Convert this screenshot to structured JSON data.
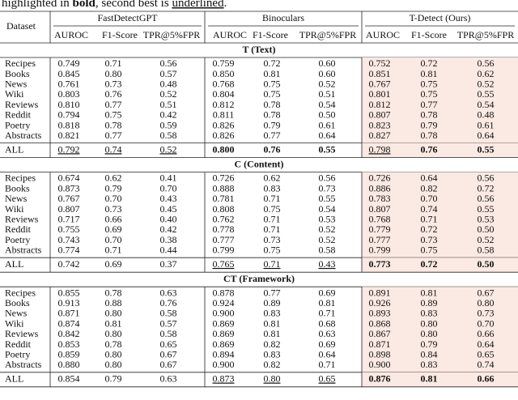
{
  "caption": {
    "runs": [
      {
        "text": "highlighted in "
      },
      {
        "text": "bold",
        "bold": true
      },
      {
        "text": ", second best is "
      },
      {
        "text": "underlined",
        "underline": true
      },
      {
        "text": "."
      }
    ]
  },
  "table": {
    "dataset_header": "Dataset",
    "highlight_group": 2,
    "groups": [
      {
        "name": "FastDetectGPT",
        "columns": [
          "AUROC",
          "F1-Score",
          "TPR@5%FPR"
        ]
      },
      {
        "name": "Binoculars",
        "columns": [
          "AUROC",
          "F1-Score",
          "TPR@5%FPR"
        ]
      },
      {
        "name": "T-Detect (Ours)",
        "columns": [
          "AUROC",
          "F1-Score",
          "TPR@5%FPR"
        ]
      }
    ],
    "sections": [
      {
        "title": "T (Text)",
        "rows": [
          [
            "Recipes",
            "0.749",
            "0.71",
            "0.56",
            "0.759",
            "0.72",
            "0.60",
            "0.752",
            "0.72",
            "0.56"
          ],
          [
            "Books",
            "0.845",
            "0.80",
            "0.57",
            "0.850",
            "0.81",
            "0.60",
            "0.851",
            "0.81",
            "0.62"
          ],
          [
            "News",
            "0.761",
            "0.73",
            "0.48",
            "0.768",
            "0.75",
            "0.52",
            "0.767",
            "0.75",
            "0.52"
          ],
          [
            "Wiki",
            "0.803",
            "0.76",
            "0.52",
            "0.804",
            "0.75",
            "0.51",
            "0.801",
            "0.75",
            "0.55"
          ],
          [
            "Reviews",
            "0.810",
            "0.77",
            "0.51",
            "0.812",
            "0.78",
            "0.54",
            "0.812",
            "0.77",
            "0.54"
          ],
          [
            "Reddit",
            "0.794",
            "0.75",
            "0.42",
            "0.811",
            "0.78",
            "0.50",
            "0.807",
            "0.78",
            "0.48"
          ],
          [
            "Poetry",
            "0.818",
            "0.78",
            "0.59",
            "0.826",
            "0.79",
            "0.61",
            "0.823",
            "0.79",
            "0.61"
          ],
          [
            "Abstracts",
            "0.821",
            "0.77",
            "0.58",
            "0.826",
            "0.77",
            "0.64",
            "0.827",
            "0.78",
            "0.64"
          ]
        ],
        "all": {
          "cells": [
            "ALL",
            "0.792",
            "0.74",
            "0.52",
            "0.800",
            "0.76",
            "0.55",
            "0.798",
            "0.76",
            "0.55"
          ],
          "bold": [
            4,
            5,
            6,
            8,
            9
          ],
          "underline": [
            1,
            2,
            3,
            7
          ]
        }
      },
      {
        "title": "C (Content)",
        "rows": [
          [
            "Recipes",
            "0.674",
            "0.62",
            "0.41",
            "0.726",
            "0.62",
            "0.56",
            "0.726",
            "0.64",
            "0.56"
          ],
          [
            "Books",
            "0.873",
            "0.79",
            "0.70",
            "0.888",
            "0.83",
            "0.73",
            "0.886",
            "0.82",
            "0.72"
          ],
          [
            "News",
            "0.767",
            "0.70",
            "0.43",
            "0.781",
            "0.71",
            "0.55",
            "0.783",
            "0.70",
            "0.56"
          ],
          [
            "Wiki",
            "0.807",
            "0.73",
            "0.45",
            "0.808",
            "0.75",
            "0.54",
            "0.807",
            "0.74",
            "0.55"
          ],
          [
            "Reviews",
            "0.717",
            "0.66",
            "0.40",
            "0.762",
            "0.71",
            "0.53",
            "0.768",
            "0.71",
            "0.53"
          ],
          [
            "Reddit",
            "0.755",
            "0.69",
            "0.42",
            "0.778",
            "0.71",
            "0.52",
            "0.779",
            "0.72",
            "0.50"
          ],
          [
            "Poetry",
            "0.743",
            "0.70",
            "0.38",
            "0.777",
            "0.73",
            "0.52",
            "0.777",
            "0.73",
            "0.52"
          ],
          [
            "Abstracts",
            "0.774",
            "0.71",
            "0.44",
            "0.799",
            "0.75",
            "0.58",
            "0.799",
            "0.75",
            "0.58"
          ]
        ],
        "all": {
          "cells": [
            "ALL",
            "0.742",
            "0.69",
            "0.37",
            "0.765",
            "0.71",
            "0.43",
            "0.773",
            "0.72",
            "0.50"
          ],
          "bold": [
            7,
            8,
            9
          ],
          "underline": [
            4,
            5,
            6
          ]
        }
      },
      {
        "title": "CT (Framework)",
        "rows": [
          [
            "Recipes",
            "0.855",
            "0.78",
            "0.63",
            "0.878",
            "0.77",
            "0.69",
            "0.891",
            "0.81",
            "0.67"
          ],
          [
            "Books",
            "0.913",
            "0.88",
            "0.76",
            "0.924",
            "0.89",
            "0.81",
            "0.926",
            "0.89",
            "0.80"
          ],
          [
            "News",
            "0.871",
            "0.80",
            "0.58",
            "0.900",
            "0.83",
            "0.71",
            "0.893",
            "0.83",
            "0.73"
          ],
          [
            "Wiki",
            "0.874",
            "0.81",
            "0.57",
            "0.869",
            "0.81",
            "0.68",
            "0.868",
            "0.80",
            "0.70"
          ],
          [
            "Reviews",
            "0.842",
            "0.80",
            "0.58",
            "0.869",
            "0.81",
            "0.63",
            "0.867",
            "0.80",
            "0.66"
          ],
          [
            "Reddit",
            "0.853",
            "0.78",
            "0.65",
            "0.869",
            "0.82",
            "0.69",
            "0.871",
            "0.79",
            "0.64"
          ],
          [
            "Poetry",
            "0.859",
            "0.80",
            "0.67",
            "0.894",
            "0.83",
            "0.64",
            "0.898",
            "0.84",
            "0.65"
          ],
          [
            "Abstracts",
            "0.880",
            "0.80",
            "0.67",
            "0.900",
            "0.82",
            "0.71",
            "0.900",
            "0.83",
            "0.74"
          ]
        ],
        "all": {
          "cells": [
            "ALL",
            "0.854",
            "0.79",
            "0.63",
            "0.873",
            "0.80",
            "0.65",
            "0.876",
            "0.81",
            "0.66"
          ],
          "bold": [
            7,
            8,
            9
          ],
          "underline": [
            4,
            5,
            6
          ]
        }
      }
    ]
  }
}
